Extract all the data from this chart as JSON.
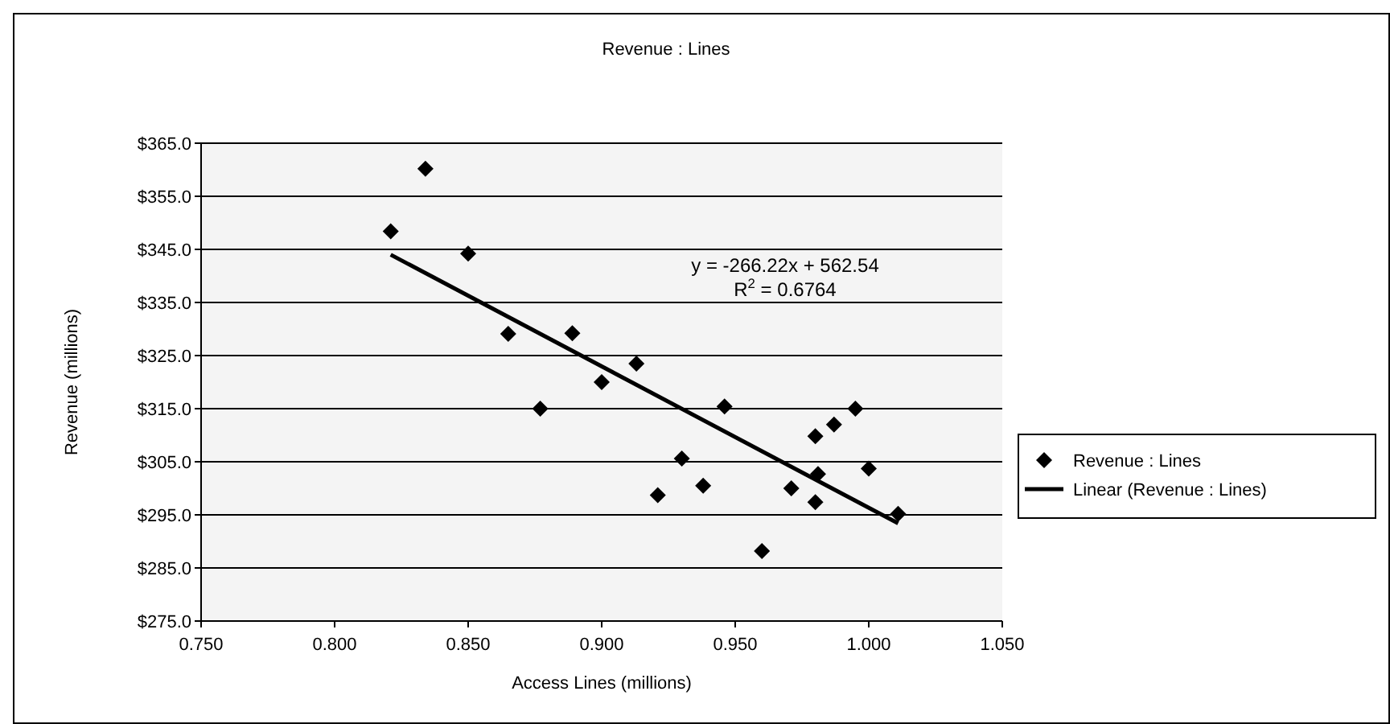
{
  "chart_data": {
    "type": "scatter",
    "title": "Revenue : Lines",
    "xlabel": "Access Lines (millions)",
    "ylabel": "Revenue (millions)",
    "xlim": [
      0.75,
      1.05
    ],
    "xticks": [
      {
        "value": 0.75,
        "label": "0.750"
      },
      {
        "value": 0.8,
        "label": "0.800"
      },
      {
        "value": 0.85,
        "label": "0.850"
      },
      {
        "value": 0.9,
        "label": "0.900"
      },
      {
        "value": 0.95,
        "label": "0.950"
      },
      {
        "value": 1.0,
        "label": "1.000"
      },
      {
        "value": 1.05,
        "label": "1.050"
      }
    ],
    "ylim": [
      275,
      365
    ],
    "yticks": [
      {
        "value": 275,
        "label": "$275.0"
      },
      {
        "value": 285,
        "label": "$285.0"
      },
      {
        "value": 295,
        "label": "$295.0"
      },
      {
        "value": 305,
        "label": "$305.0"
      },
      {
        "value": 315,
        "label": "$315.0"
      },
      {
        "value": 325,
        "label": "$325.0"
      },
      {
        "value": 335,
        "label": "$335.0"
      },
      {
        "value": 345,
        "label": "$345.0"
      },
      {
        "value": 355,
        "label": "$355.0"
      },
      {
        "value": 365,
        "label": "$365.0"
      }
    ],
    "grid": "y",
    "legend": "right",
    "annotations": [
      "y = -266.22x + 562.54",
      "R$^{2}$ = 0.6764"
    ],
    "series": [
      {
        "name": "Revenue : Lines",
        "marker": "diamond",
        "color": "#000000",
        "x": [
          0.821,
          0.834,
          0.85,
          0.865,
          0.877,
          0.889,
          0.9,
          0.913,
          0.946,
          0.995,
          0.987,
          0.98,
          0.93,
          1.0,
          0.981,
          0.938,
          0.921,
          0.971,
          0.98,
          1.011,
          0.96
        ],
        "values": [
          348.4,
          360.2,
          344.2,
          329.1,
          315,
          329.2,
          320,
          323.5,
          315.4,
          315,
          312,
          309.8,
          305.6,
          303.7,
          302.7,
          300.5,
          298.7,
          300,
          297.4,
          295.2,
          288.2
        ]
      },
      {
        "name": "Linear (Revenue : Lines)",
        "type": "line",
        "marker": "none",
        "line_style": "solid",
        "color": "#000000",
        "x": [
          0.821,
          1.011
        ],
        "values": [
          344.0,
          293.4
        ]
      }
    ]
  }
}
